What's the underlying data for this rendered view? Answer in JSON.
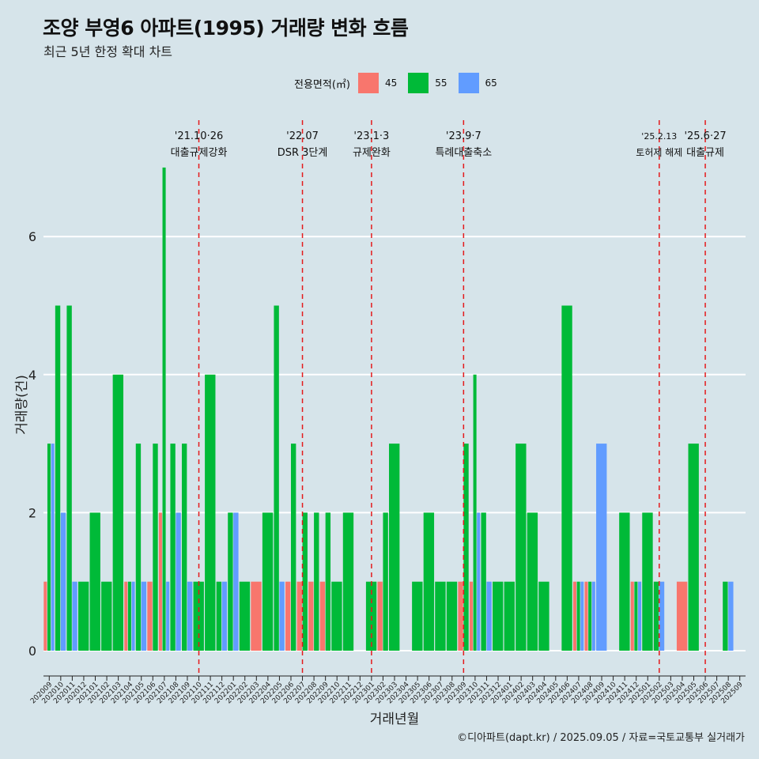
{
  "title": "조양 부영6 아파트(1995) 거래량 변화 흐름",
  "subtitle": "최근 5년 한정 확대 차트",
  "caption": "©디아파트(dapt.kr) / 2025.09.05 / 자료=국토교통부 실거래가",
  "legend": {
    "title": "전용면적(㎡)",
    "items": [
      {
        "label": "45",
        "color": "#f8766d"
      },
      {
        "label": "55",
        "color": "#00ba38"
      },
      {
        "label": "65",
        "color": "#619cff"
      }
    ]
  },
  "chart_data": {
    "type": "bar",
    "xlabel": "거래년월",
    "ylabel": "거래량(건)",
    "ylim": [
      0,
      7
    ],
    "y_ticks": [
      0,
      2,
      4,
      6
    ],
    "grid": "horizontal",
    "legend_position": "top",
    "categories": [
      "202009",
      "202010",
      "202011",
      "202012",
      "202101",
      "202102",
      "202103",
      "202104",
      "202105",
      "202106",
      "202107",
      "202108",
      "202109",
      "202110",
      "202111",
      "202112",
      "202201",
      "202202",
      "202203",
      "202204",
      "202205",
      "202206",
      "202207",
      "202208",
      "202209",
      "202210",
      "202211",
      "202212",
      "202301",
      "202302",
      "202303",
      "202304",
      "202305",
      "202306",
      "202307",
      "202308",
      "202309",
      "202310",
      "202311",
      "202312",
      "202401",
      "202402",
      "202403",
      "202404",
      "202405",
      "202406",
      "202407",
      "202408",
      "202409",
      "202410",
      "202411",
      "202412",
      "202501",
      "202502",
      "202503",
      "202504",
      "202505",
      "202506",
      "202507",
      "202508",
      "202509"
    ],
    "series": [
      {
        "name": "45",
        "color": "#f8766d",
        "values": [
          1,
          0,
          0,
          0,
          0,
          0,
          0,
          1,
          0,
          1,
          2,
          0,
          0,
          0,
          0,
          0,
          0,
          0,
          1,
          0,
          0,
          1,
          1,
          1,
          1,
          0,
          0,
          0,
          0,
          1,
          0,
          0,
          0,
          0,
          0,
          0,
          1,
          1,
          0,
          0,
          0,
          0,
          0,
          0,
          0,
          0,
          1,
          1,
          0,
          0,
          0,
          1,
          0,
          0,
          0,
          1,
          0,
          0,
          0,
          0,
          0
        ]
      },
      {
        "name": "55",
        "color": "#00ba38",
        "values": [
          3,
          5,
          5,
          1,
          2,
          1,
          4,
          1,
          3,
          3,
          7,
          3,
          3,
          1,
          4,
          1,
          2,
          1,
          0,
          2,
          5,
          3,
          2,
          2,
          2,
          1,
          2,
          0,
          1,
          2,
          3,
          0,
          1,
          2,
          1,
          1,
          3,
          4,
          2,
          1,
          1,
          3,
          2,
          1,
          0,
          5,
          1,
          1,
          0,
          0,
          2,
          1,
          2,
          1,
          0,
          0,
          3,
          0,
          0,
          1,
          0
        ]
      },
      {
        "name": "65",
        "color": "#619cff",
        "values": [
          3,
          2,
          1,
          0,
          0,
          0,
          0,
          1,
          1,
          0,
          1,
          2,
          1,
          0,
          0,
          1,
          2,
          0,
          0,
          0,
          1,
          0,
          0,
          0,
          0,
          0,
          0,
          0,
          0,
          0,
          0,
          0,
          0,
          0,
          0,
          0,
          0,
          2,
          1,
          0,
          0,
          0,
          0,
          0,
          0,
          0,
          1,
          1,
          3,
          0,
          0,
          1,
          0,
          1,
          0,
          0,
          0,
          0,
          0,
          1,
          0
        ]
      }
    ],
    "annotations": [
      {
        "month": "202110",
        "date": "'21.10·26",
        "label": "대출규제강화"
      },
      {
        "month": "202207",
        "date": "'22.07",
        "label": "DSR 3단계"
      },
      {
        "month": "202301",
        "date": "'23.1·3",
        "label": "규제완화"
      },
      {
        "month": "202309",
        "date": "'23.9·7",
        "label": "특례대출축소"
      },
      {
        "month": "202502",
        "date": "'25.2.13",
        "label": "토허제 해제"
      },
      {
        "month": "202506",
        "date": "'25.6·27",
        "label": "대출규제"
      }
    ]
  }
}
